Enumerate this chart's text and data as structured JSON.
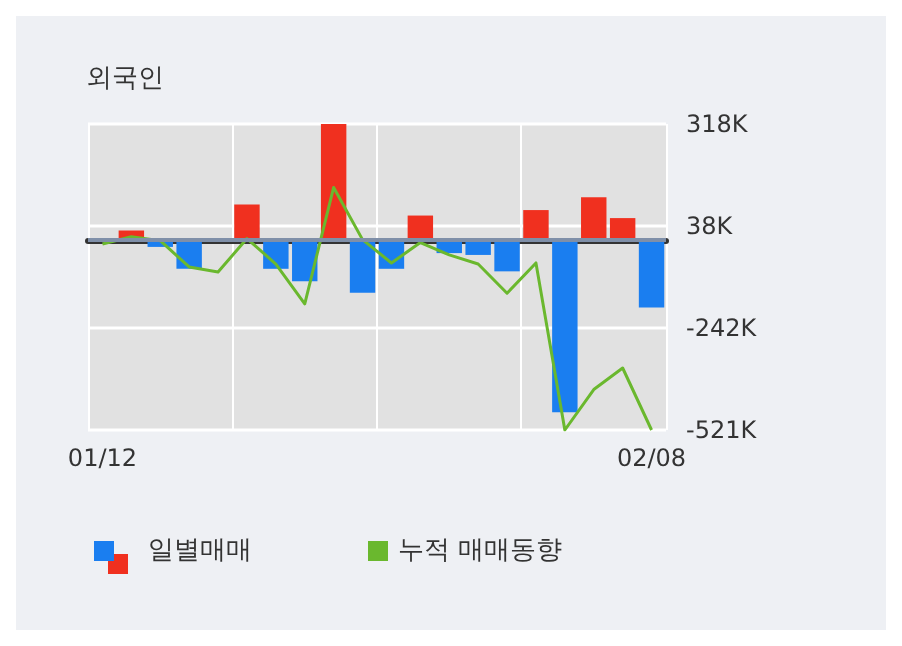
{
  "chart_data": {
    "type": "bar",
    "title": "외국인",
    "categories": [
      "01/12",
      null,
      null,
      null,
      null,
      null,
      null,
      null,
      null,
      null,
      null,
      null,
      null,
      null,
      null,
      null,
      null,
      null,
      null,
      "02/08"
    ],
    "series": [
      {
        "name": "일별매매",
        "color": "#1a7ef0",
        "colors": [
          "#1a7ef0",
          "#f0301f",
          "#1a7ef0",
          "#1a7ef0",
          "#1a7ef0",
          "#f0301f",
          "#1a7ef0",
          "#1a7ef0",
          "#f0301f",
          "#1a7ef0",
          "#1a7ef0",
          "#f0301f",
          "#1a7ef0",
          "#1a7ef0",
          "#1a7ef0",
          "#f0301f",
          "#1a7ef0",
          "#f0301f",
          "#f0301f",
          "#1a7ef0"
        ],
        "values": [
          null,
          26,
          -19,
          -79,
          null,
          97,
          -79,
          -113,
          318,
          -145,
          -79,
          67,
          -36,
          -41,
          -86,
          82,
          -472,
          117,
          60,
          -185
        ]
      },
      {
        "name": "누적 매매동향",
        "type": "line",
        "color": "#6ab82e",
        "values": [
          -11,
          9,
          -2,
          -74,
          -88,
          4,
          -66,
          -175,
          144,
          1,
          -63,
          -7,
          -41,
          -66,
          -146,
          -63,
          -521,
          -410,
          -351,
          -521
        ]
      }
    ],
    "ylim": [
      -521,
      318
    ],
    "yticks": [
      {
        "value": 318,
        "label": "318K"
      },
      {
        "value": 38,
        "label": "38K"
      },
      {
        "value": -242,
        "label": "-242K"
      },
      {
        "value": -521,
        "label": "-521K"
      }
    ],
    "ref_lines": [
      {
        "axis": "y",
        "value": 0,
        "color": "#7f8fa8"
      }
    ],
    "grid": true,
    "legend": "bottom",
    "marker": "none",
    "line_style": "solid"
  }
}
